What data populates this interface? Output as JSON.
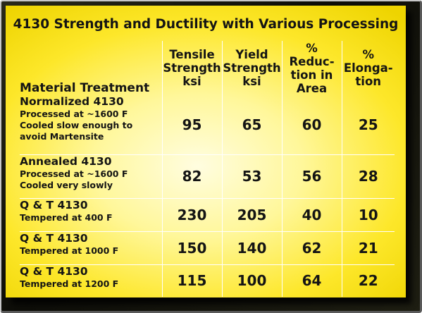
{
  "title": "4130 Strength and Ductility with Various Processing",
  "headers": {
    "treatment": "Material Treatment",
    "tensile": "Tensile\nStrength\nksi",
    "yield": "Yield\nStrength\nksi",
    "reduction": "% Reduc-\ntion in\nArea",
    "elongation": "%\nElonga-\ntion"
  },
  "rows": [
    {
      "name": "Normalized 4130",
      "detail": "Processed  at ~1600 F\nCooled slow enough to\navoid Martensite",
      "tensile": "95",
      "yield": "65",
      "reduction": "60",
      "elongation": "25"
    },
    {
      "name": "Annealed 4130",
      "detail": "Processed  at ~1600 F\nCooled very slowly",
      "tensile": "82",
      "yield": "53",
      "reduction": "56",
      "elongation": "28"
    },
    {
      "name": "Q & T 4130",
      "detail": "Tempered at 400 F",
      "tensile": "230",
      "yield": "205",
      "reduction": "40",
      "elongation": "10"
    },
    {
      "name": "Q & T 4130",
      "detail": "Tempered at 1000 F",
      "tensile": "150",
      "yield": "140",
      "reduction": "62",
      "elongation": "21"
    },
    {
      "name": "Q & T 4130",
      "detail": "Tempered at 1200 F",
      "tensile": "115",
      "yield": "100",
      "reduction": "64",
      "elongation": "22"
    }
  ]
}
